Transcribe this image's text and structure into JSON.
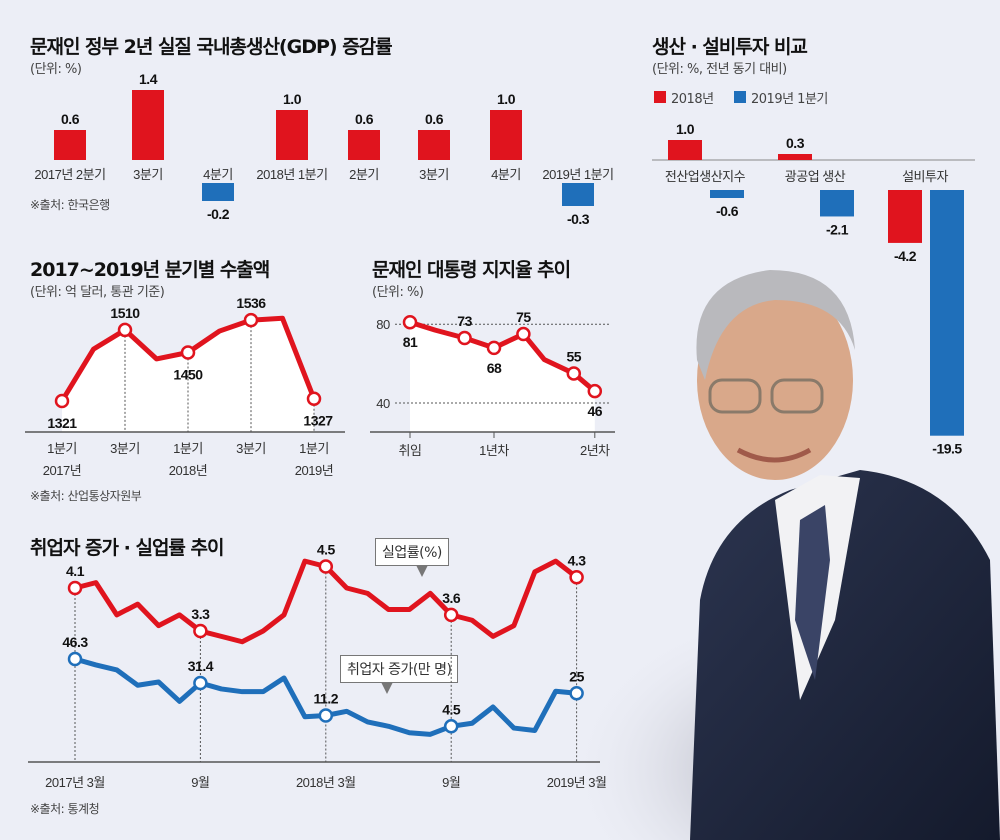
{
  "colors": {
    "red": "#e0141e",
    "blue": "#1f6fba",
    "background": "#eceef6"
  },
  "chart_data": [
    {
      "id": "gdp",
      "type": "bar",
      "title": "문재인 정부 2년 실질 국내총생산(GDP) 증감률",
      "unit": "(단위: %)",
      "source": "※출처: 한국은행",
      "categories": [
        "2017년 2분기",
        "3분기",
        "4분기",
        "2018년 1분기",
        "2분기",
        "3분기",
        "4분기",
        "2019년 1분기"
      ],
      "values": [
        0.6,
        1.4,
        -0.2,
        1.0,
        0.6,
        0.6,
        1.0,
        -0.3
      ],
      "labels": [
        "0.6",
        "1.4",
        "-0.2",
        "1.0",
        "0.6",
        "0.6",
        "1.0",
        "-0.3"
      ]
    },
    {
      "id": "investment",
      "type": "bar",
      "title": "생산 · 설비투자 비교",
      "unit": "(단위: %, 전년 동기 대비)",
      "categories": [
        "전산업생산지수",
        "광공업 생산",
        "설비투자"
      ],
      "legend_position": "top-left",
      "series": [
        {
          "name": "2018년",
          "values": [
            1.0,
            0.3,
            -4.2
          ],
          "labels": [
            "1.0",
            "0.3",
            "-4.2"
          ]
        },
        {
          "name": "2019년 1분기",
          "values": [
            -0.6,
            -2.1,
            -19.5
          ],
          "labels": [
            "-0.6",
            "-2.1",
            "-19.5"
          ]
        }
      ]
    },
    {
      "id": "exports",
      "type": "line",
      "title": "2017~2019년 분기별 수출액",
      "unit": "(단위: 억 달러, 통관 기준)",
      "source": "※출처: 산업통상자원부",
      "x": [
        "2017 Q1",
        "2017 Q2",
        "2017 Q3",
        "2017 Q4",
        "2018 Q1",
        "2018 Q2",
        "2018 Q3",
        "2018 Q4",
        "2019 Q1"
      ],
      "values": [
        1321,
        1459,
        1510,
        1433,
        1450,
        1507,
        1536,
        1541,
        1327
      ],
      "labeled_points": {
        "0": "1321",
        "2": "1510",
        "4": "1450",
        "6": "1536",
        "8": "1327"
      },
      "tick_labels": [
        {
          "index": 0,
          "line1": "1분기",
          "line2": "2017년"
        },
        {
          "index": 2,
          "line1": "3분기",
          "line2": ""
        },
        {
          "index": 4,
          "line1": "1분기",
          "line2": "2018년"
        },
        {
          "index": 6,
          "line1": "3분기",
          "line2": ""
        },
        {
          "index": 8,
          "line1": "1분기",
          "line2": "2019년"
        }
      ]
    },
    {
      "id": "approval",
      "type": "line",
      "title": "문재인 대통령 지지율 추이",
      "unit": "(단위: %)",
      "x": [
        0,
        0.3,
        0.65,
        1.0,
        1.35,
        1.6,
        1.95,
        2.2
      ],
      "values": [
        81,
        77,
        73,
        68,
        75,
        62,
        55,
        46
      ],
      "labeled_points": {
        "0": "81",
        "2": "73",
        "3": "68",
        "4": "75",
        "6": "55",
        "7": "46"
      },
      "y_ticks": [
        "80",
        "40"
      ],
      "ylim": [
        40,
        80
      ],
      "x_ticks": [
        {
          "at": 0,
          "label": "취임"
        },
        {
          "at": 1.0,
          "label": "1년차"
        },
        {
          "at": 2.2,
          "label": "2년차"
        }
      ]
    },
    {
      "id": "employment",
      "type": "line",
      "title": "취업자 증가 · 실업률 추이",
      "source": "※출처: 통계청",
      "x_ticks": [
        {
          "index": 0,
          "label": "2017년 3월"
        },
        {
          "index": 6,
          "label": "9월"
        },
        {
          "index": 12,
          "label": "2018년 3월"
        },
        {
          "index": 18,
          "label": "9월"
        },
        {
          "index": 24,
          "label": "2019년 3월"
        }
      ],
      "series": [
        {
          "name": "실업률(%)",
          "values": [
            4.1,
            4.2,
            3.6,
            3.8,
            3.4,
            3.6,
            3.3,
            3.2,
            3.1,
            3.3,
            3.6,
            4.6,
            4.5,
            4.1,
            4.0,
            3.7,
            3.7,
            4.0,
            3.6,
            3.5,
            3.2,
            3.4,
            4.4,
            4.6,
            4.3
          ],
          "labeled_points": {
            "0": "4.1",
            "6": "3.3",
            "12": "4.5",
            "18": "3.6",
            "24": "4.3"
          }
        },
        {
          "name": "취업자 증가(만 명)",
          "values": [
            46.3,
            42.6,
            39.5,
            30,
            32,
            20,
            31.4,
            27.7,
            26,
            26,
            34.5,
            10.4,
            11.2,
            13.8,
            7.2,
            4.5,
            0.5,
            -0.5,
            4.5,
            6.4,
            16.5,
            3.4,
            1.9,
            26.3,
            25
          ],
          "labeled_points": {
            "0": "46.3",
            "6": "31.4",
            "12": "11.2",
            "18": "4.5",
            "24": "25"
          }
        }
      ]
    }
  ]
}
